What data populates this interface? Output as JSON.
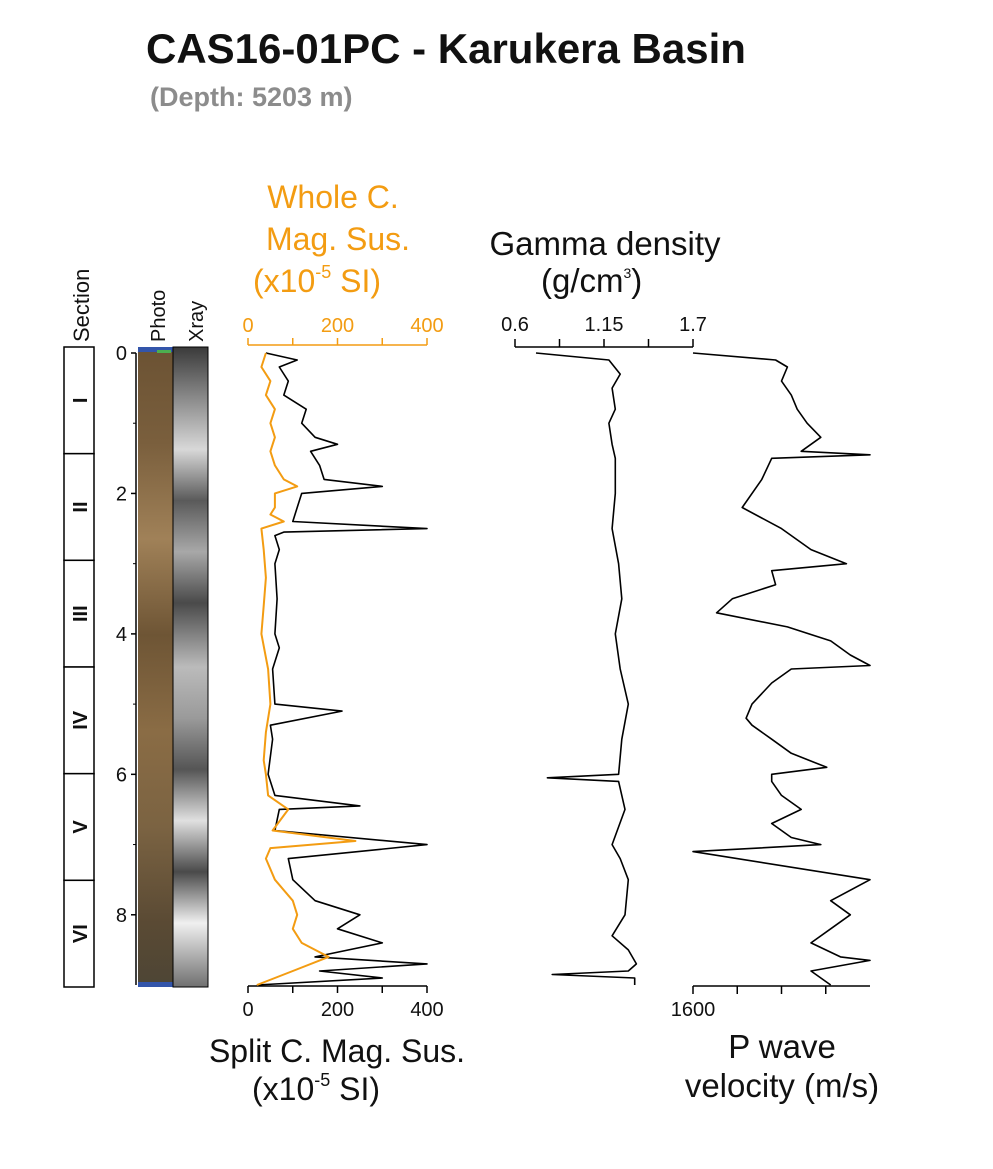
{
  "header": {
    "title": "CAS16-01PC - Karukera Basin",
    "subtitle": "(Depth: 5203 m)"
  },
  "colors": {
    "whole_core": "#f39c12",
    "trace": "#000000",
    "text": "#111111",
    "subtitle": "#8c8c8c"
  },
  "columns": {
    "section_label": "Section",
    "photo_label": "Photo",
    "xray_label": "Xray",
    "sections": [
      "I",
      "II",
      "III",
      "IV",
      "V",
      "VI"
    ]
  },
  "chart_data": [
    {
      "type": "line",
      "title": "",
      "depth_axis": {
        "ticks": [
          "0",
          "2",
          "4",
          "6",
          "8"
        ],
        "range": [
          0,
          9.0
        ]
      },
      "top_axis": {
        "label_lines": [
          "Whole C.",
          "Mag. Sus.",
          "(x10",
          "-5",
          " SI)"
        ],
        "ticks": [
          "0",
          "200",
          "400"
        ],
        "range": [
          0,
          400
        ]
      },
      "bottom_axis": {
        "label_line1": "Split C. Mag. Sus.",
        "label_line2_pre": "(x10",
        "label_line2_sup": "-5",
        "label_line2_post": " SI)",
        "ticks": [
          "0",
          "200",
          "400"
        ],
        "range": [
          0,
          400
        ]
      },
      "series": [
        {
          "key": "split",
          "depth": [
            0,
            0.1,
            0.2,
            0.4,
            0.6,
            0.8,
            1.0,
            1.2,
            1.3,
            1.4,
            1.6,
            1.8,
            1.9,
            2.0,
            2.2,
            2.4,
            2.5,
            2.55,
            2.6,
            2.8,
            3.0,
            3.5,
            4.0,
            4.2,
            4.5,
            5.0,
            5.1,
            5.3,
            5.5,
            6.0,
            6.3,
            6.45,
            6.5,
            6.8,
            7.0,
            7.2,
            7.5,
            7.8,
            8.0,
            8.2,
            8.4,
            8.6,
            8.7,
            8.8,
            8.9,
            9.0
          ],
          "values": [
            40,
            110,
            70,
            90,
            80,
            130,
            120,
            150,
            200,
            140,
            160,
            170,
            300,
            120,
            110,
            100,
            400,
            80,
            60,
            70,
            60,
            65,
            60,
            70,
            55,
            60,
            210,
            50,
            55,
            45,
            60,
            250,
            70,
            60,
            400,
            90,
            100,
            150,
            250,
            200,
            300,
            150,
            400,
            160,
            300,
            20
          ]
        },
        {
          "key": "whole",
          "depth": [
            0,
            0.2,
            0.4,
            0.6,
            0.8,
            1.0,
            1.2,
            1.4,
            1.6,
            1.8,
            1.9,
            2.0,
            2.2,
            2.3,
            2.4,
            2.5,
            2.8,
            3.2,
            3.6,
            4.0,
            4.5,
            5.0,
            5.4,
            5.8,
            6.0,
            6.3,
            6.5,
            6.8,
            6.95,
            7.05,
            7.2,
            7.5,
            7.8,
            8.0,
            8.2,
            8.4,
            8.6,
            8.8,
            9.0
          ],
          "values": [
            40,
            30,
            50,
            40,
            60,
            50,
            60,
            50,
            60,
            80,
            110,
            60,
            60,
            50,
            80,
            30,
            35,
            40,
            35,
            30,
            45,
            50,
            40,
            35,
            40,
            45,
            90,
            55,
            240,
            50,
            40,
            60,
            100,
            110,
            100,
            120,
            180,
            100,
            20
          ]
        }
      ]
    },
    {
      "type": "line",
      "title": "",
      "top_axis": {
        "label_line1": "Gamma density",
        "label_line2_pre": "(g/cm",
        "label_line2_sup": "3",
        "label_line2_post": ")",
        "ticks": [
          "0.6",
          "1.15",
          "1.7"
        ],
        "range": [
          0.6,
          1.7
        ]
      },
      "series": [
        {
          "key": "gamma",
          "depth": [
            0,
            0.1,
            0.3,
            0.5,
            0.8,
            1.0,
            1.3,
            1.5,
            2.0,
            2.5,
            3.0,
            3.5,
            4.0,
            4.5,
            5.0,
            5.5,
            6.0,
            6.05,
            6.1,
            6.5,
            7.0,
            7.2,
            7.5,
            8.0,
            8.3,
            8.5,
            8.7,
            8.8,
            8.85,
            8.9,
            9.0
          ],
          "values": [
            0.73,
            1.18,
            1.25,
            1.2,
            1.22,
            1.18,
            1.2,
            1.22,
            1.22,
            1.2,
            1.24,
            1.26,
            1.22,
            1.25,
            1.3,
            1.26,
            1.24,
            0.8,
            1.24,
            1.28,
            1.2,
            1.25,
            1.3,
            1.28,
            1.2,
            1.3,
            1.35,
            1.3,
            0.83,
            1.34,
            1.34
          ]
        }
      ]
    },
    {
      "type": "line",
      "title": "",
      "bottom_axis": {
        "label_line1": "P wave",
        "label_line2": "velocity (m/s)",
        "ticks": [
          "1600"
        ],
        "range": [
          1600,
          1690
        ]
      },
      "series": [
        {
          "key": "pwave",
          "depth": [
            0,
            0.1,
            0.2,
            0.4,
            0.6,
            0.8,
            1.0,
            1.2,
            1.4,
            1.45,
            1.5,
            1.8,
            2.2,
            2.5,
            2.8,
            3.0,
            3.1,
            3.3,
            3.5,
            3.7,
            3.9,
            4.1,
            4.3,
            4.45,
            4.5,
            4.7,
            5.0,
            5.2,
            5.3,
            5.5,
            5.7,
            5.9,
            6.0,
            6.1,
            6.3,
            6.5,
            6.7,
            6.9,
            7.0,
            7.1,
            7.5,
            7.8,
            8.0,
            8.2,
            8.4,
            8.6,
            8.65,
            8.8,
            9.0
          ],
          "values": [
            1600,
            1642,
            1648,
            1645,
            1650,
            1653,
            1658,
            1665,
            1655,
            1690,
            1640,
            1635,
            1625,
            1645,
            1660,
            1678,
            1640,
            1642,
            1620,
            1612,
            1648,
            1670,
            1680,
            1690,
            1650,
            1640,
            1630,
            1627,
            1630,
            1640,
            1650,
            1668,
            1640,
            1640,
            1645,
            1655,
            1640,
            1650,
            1665,
            1600,
            1690,
            1670,
            1680,
            1670,
            1660,
            1675,
            1690,
            1660,
            1670
          ]
        }
      ]
    }
  ]
}
